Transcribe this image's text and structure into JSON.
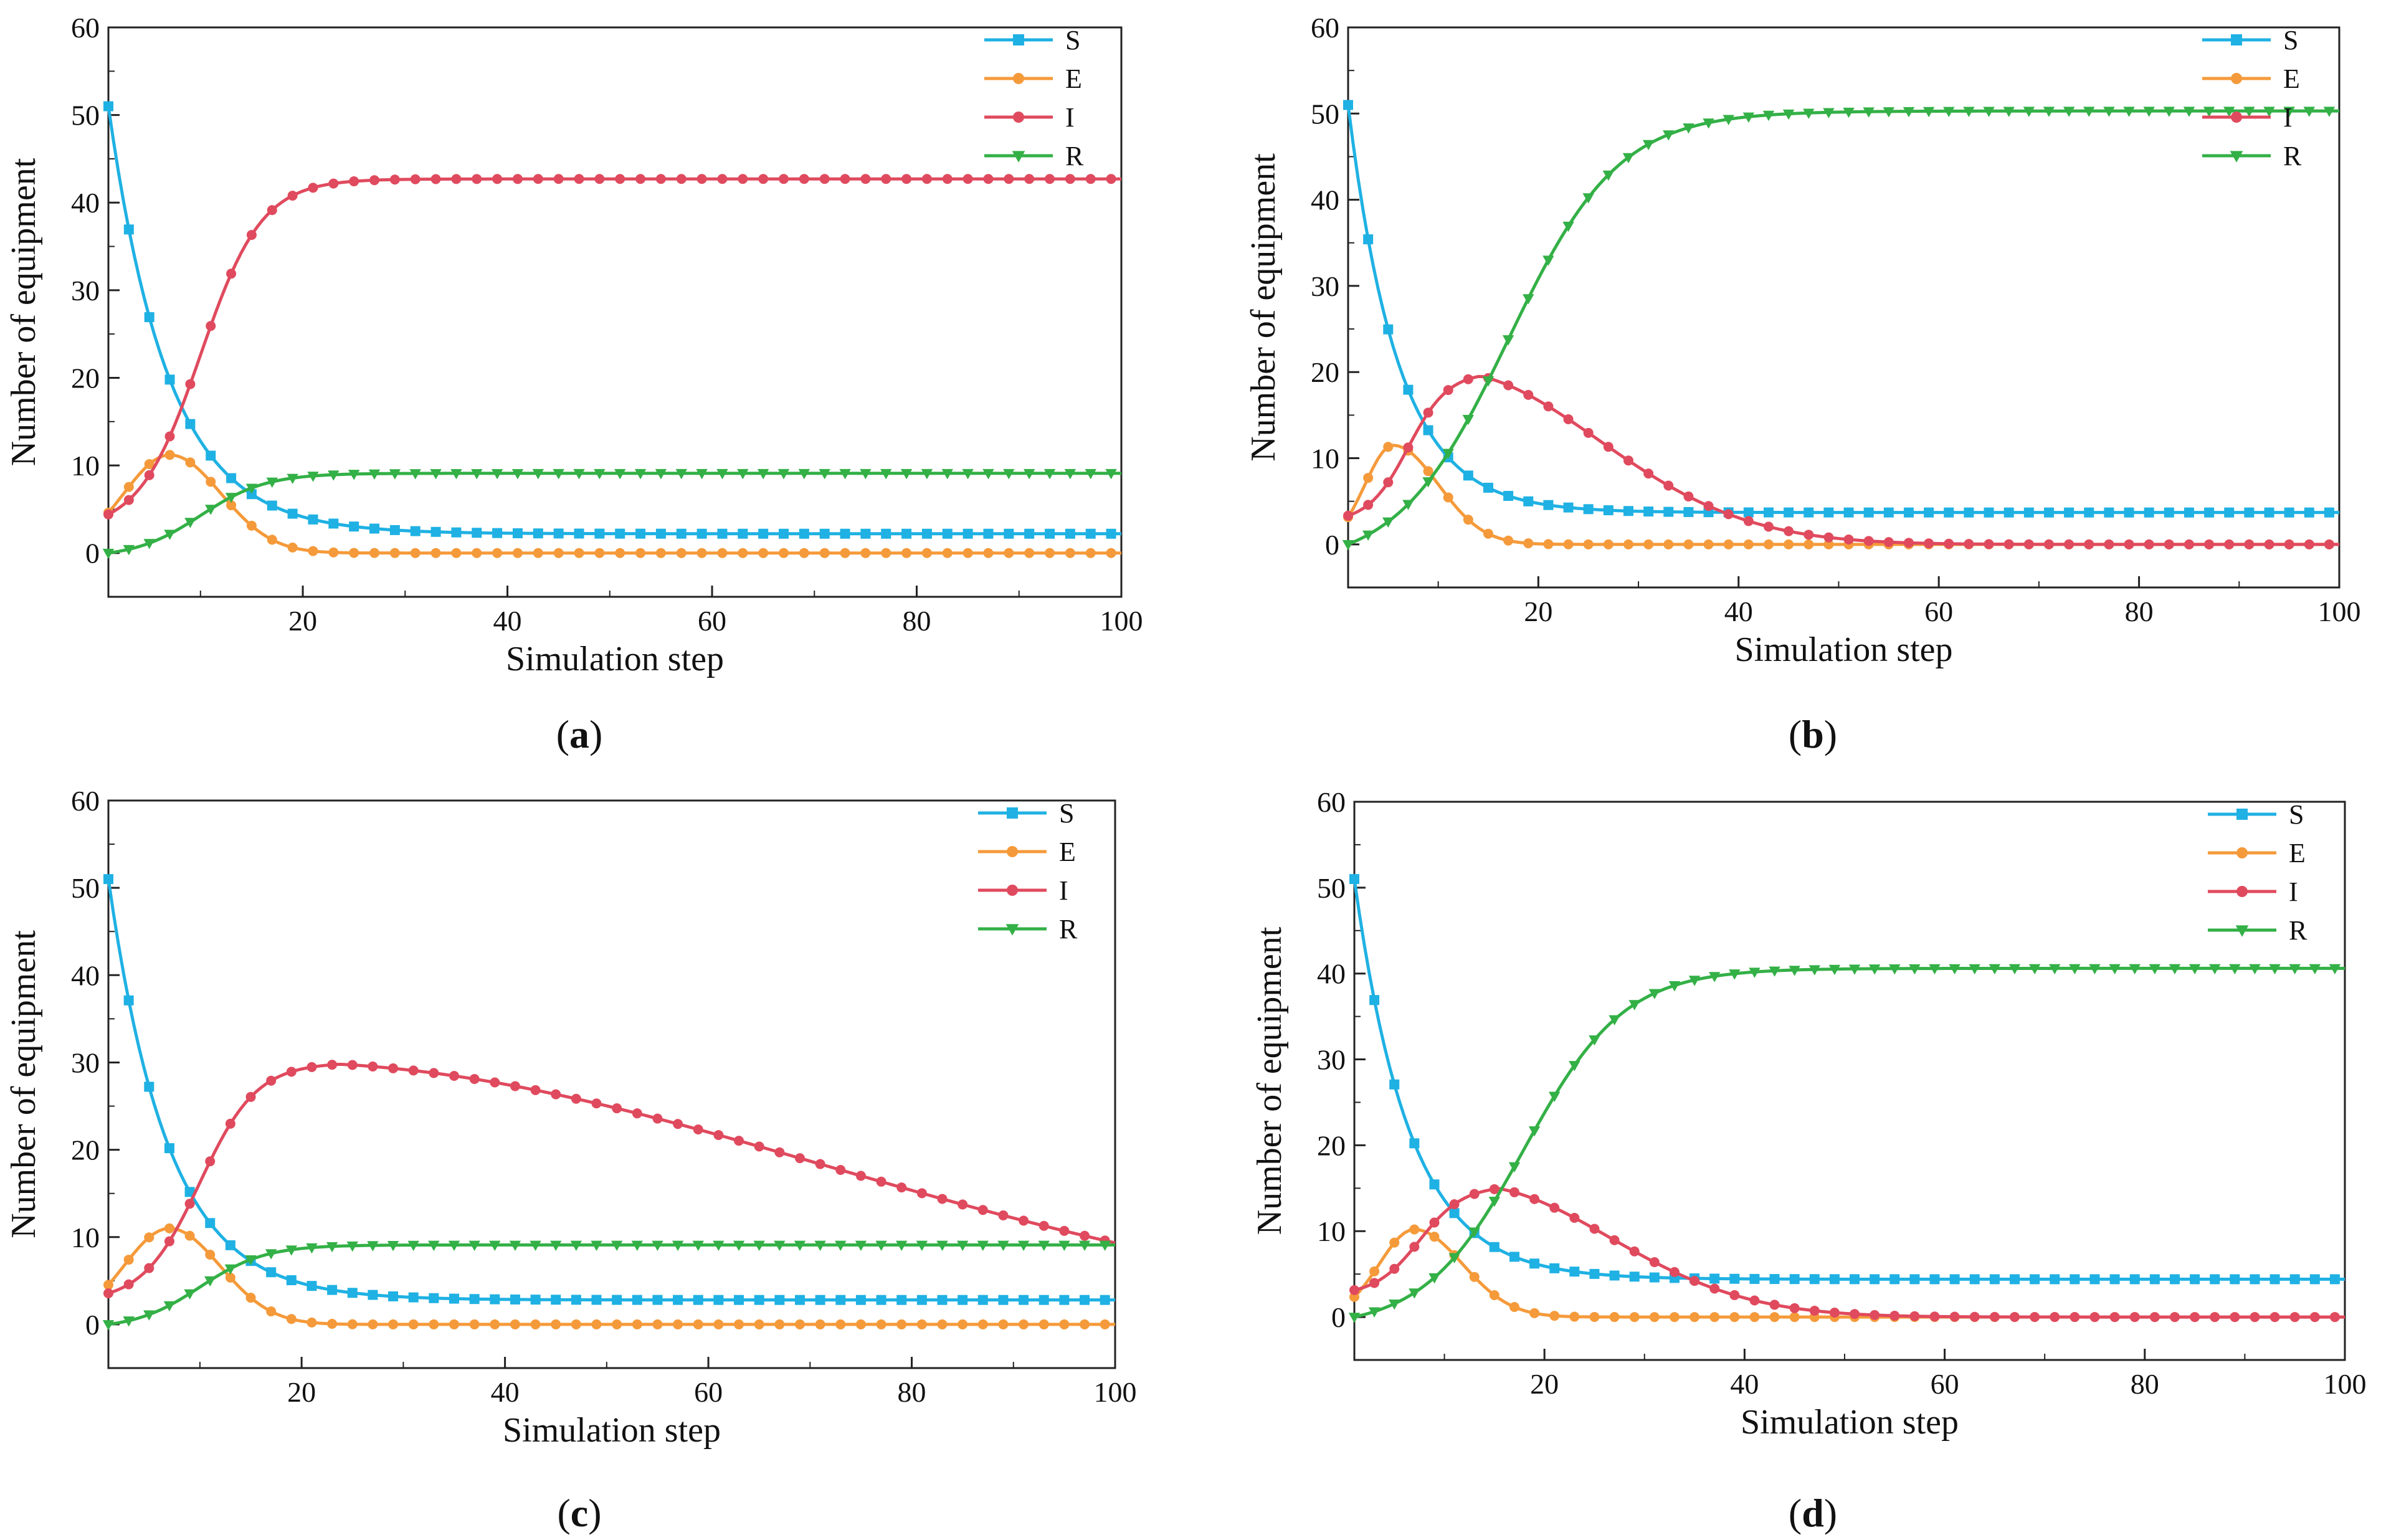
{
  "figure": {
    "colors": {
      "S": "#1fb1e3",
      "E": "#f59a3a",
      "I": "#e04a5e",
      "R": "#33b046"
    },
    "markers": {
      "S": "square",
      "E": "circle",
      "I": "circle",
      "R": "triangle-down"
    }
  },
  "chart_data": [
    {
      "type": "line",
      "panel_label": "(a)",
      "title": "",
      "xlabel": "Simulation step",
      "ylabel": "Number of equipment",
      "xlim": [
        1,
        100
      ],
      "ylim": [
        -5,
        60
      ],
      "xticks": [
        20,
        40,
        60,
        80,
        100
      ],
      "yticks": [
        0,
        10,
        20,
        30,
        40,
        50,
        60
      ],
      "legend_position": "top-right",
      "x": [
        1,
        100
      ],
      "series": [
        {
          "name": "S",
          "model": "S",
          "params": {
            "s0": 51,
            "sInf": 2.2,
            "k": 0.17
          }
        },
        {
          "name": "E",
          "model": "E",
          "params": {
            "peak": 11.2,
            "tp": 7,
            "w1": 4.5,
            "w2": 5
          }
        },
        {
          "name": "I",
          "model": "I",
          "params": {
            "iMax": 42.7,
            "i0": 2.5,
            "t50": 10,
            "s": 3,
            "tp": 999
          }
        },
        {
          "name": "R",
          "model": "R",
          "params": {
            "rMax": 9.1,
            "t50": 10,
            "s": 3.2
          }
        }
      ]
    },
    {
      "type": "line",
      "panel_label": "(b)",
      "title": "",
      "xlabel": "Simulation step",
      "ylabel": "Number of equipment",
      "xlim": [
        1,
        100
      ],
      "ylim": [
        -5,
        60
      ],
      "xticks": [
        20,
        40,
        60,
        80,
        100
      ],
      "yticks": [
        0,
        10,
        20,
        30,
        40,
        50,
        60
      ],
      "legend_position": "top-right",
      "x": [
        1,
        100
      ],
      "series": [
        {
          "name": "S",
          "model": "S",
          "params": {
            "s0": 51,
            "sInf": 3.7,
            "k": 0.2
          }
        },
        {
          "name": "E",
          "model": "E",
          "params": {
            "peak": 11.5,
            "tp": 5.5,
            "w1": 2.8,
            "w2": 4.5
          }
        },
        {
          "name": "I",
          "model": "I",
          "params": {
            "iMax": 20,
            "i0": 2.5,
            "t50": 7,
            "s": 2,
            "tp": 11,
            "d": 15
          }
        },
        {
          "name": "R",
          "model": "R",
          "params": {
            "rMax": 50.3,
            "t50": 17,
            "s": 5.5
          }
        }
      ]
    },
    {
      "type": "line",
      "panel_label": "(c)",
      "title": "",
      "xlabel": "Simulation step",
      "ylabel": "Number of equipment",
      "xlim": [
        1,
        100
      ],
      "ylim": [
        -5,
        60
      ],
      "xticks": [
        20,
        40,
        60,
        80,
        100
      ],
      "yticks": [
        0,
        10,
        20,
        30,
        40,
        50,
        60
      ],
      "legend_position": "top-right",
      "x": [
        1,
        100
      ],
      "series": [
        {
          "name": "S",
          "model": "S",
          "params": {
            "s0": 51,
            "sInf": 2.8,
            "k": 0.17
          }
        },
        {
          "name": "E",
          "model": "E",
          "params": {
            "peak": 11,
            "tp": 7,
            "w1": 4.5,
            "w2": 5
          }
        },
        {
          "name": "I",
          "model": "I",
          "params": {
            "iMax": 30,
            "i0": 2.5,
            "t50": 10,
            "s": 2.8,
            "tp": 17.5,
            "d": 54
          }
        },
        {
          "name": "R",
          "model": "R",
          "params": {
            "rMax": 9.1,
            "t50": 10,
            "s": 3.2
          }
        }
      ]
    },
    {
      "type": "line",
      "panel_label": "(d)",
      "title": "",
      "xlabel": "Simulation step",
      "ylabel": "Number of equipment",
      "xlim": [
        1,
        100
      ],
      "ylim": [
        -5,
        60
      ],
      "xticks": [
        20,
        40,
        60,
        80,
        100
      ],
      "yticks": [
        0,
        10,
        20,
        30,
        40,
        50,
        60
      ],
      "legend_position": "top-right",
      "x": [
        1,
        100
      ],
      "series": [
        {
          "name": "S",
          "model": "S",
          "params": {
            "s0": 51,
            "sInf": 4.4,
            "k": 0.18
          }
        },
        {
          "name": "E",
          "model": "E",
          "params": {
            "peak": 10.2,
            "tp": 7,
            "w1": 3.5,
            "w2": 4.8
          }
        },
        {
          "name": "I",
          "model": "I",
          "params": {
            "iMax": 15.3,
            "i0": 2.5,
            "t50": 7.5,
            "s": 2.2,
            "tp": 12.5,
            "d": 14
          }
        },
        {
          "name": "R",
          "model": "R",
          "params": {
            "rMax": 40.6,
            "t50": 18,
            "s": 5
          }
        }
      ]
    }
  ]
}
